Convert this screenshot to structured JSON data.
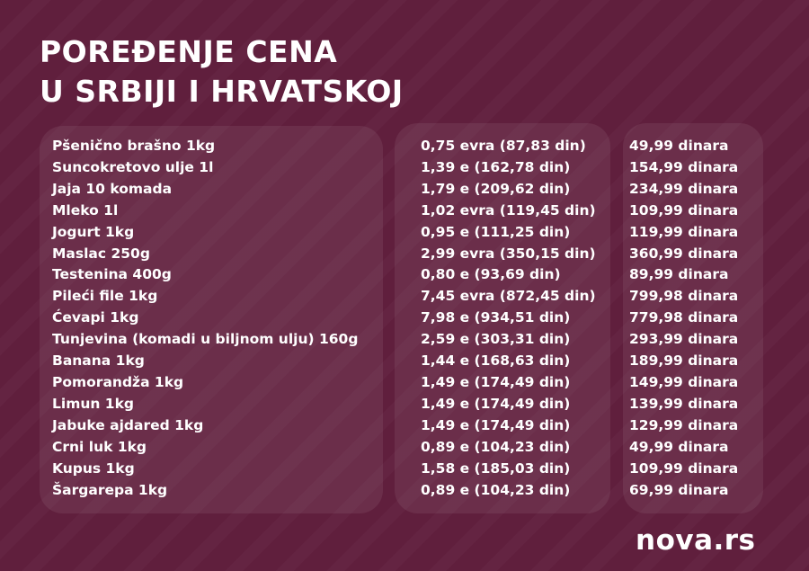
{
  "title": {
    "line1": "POREĐENJE CENA",
    "line2": "U SRBIJI I HRVATSKOJ"
  },
  "colors": {
    "background": "#601f3d",
    "panel": "rgba(255,255,255,0.07)",
    "text": "#ffffff"
  },
  "table": {
    "rows": [
      {
        "product": "Pšenično brašno 1kg",
        "croatia": "0,75 evra (87,83 din)",
        "serbia": "49,99 dinara"
      },
      {
        "product": "Suncokretovo ulje 1l",
        "croatia": "1,39 e (162,78 din)",
        "serbia": "154,99 dinara"
      },
      {
        "product": "Jaja 10 komada",
        "croatia": "1,79 e (209,62 din)",
        "serbia": "234,99 dinara"
      },
      {
        "product": "Mleko 1l",
        "croatia": "1,02 evra (119,45 din)",
        "serbia": "109,99 dinara"
      },
      {
        "product": "Jogurt 1kg",
        "croatia": "0,95 e (111,25 din)",
        "serbia": "119,99 dinara"
      },
      {
        "product": "Maslac 250g",
        "croatia": "2,99 evra (350,15 din)",
        "serbia": "360,99 dinara"
      },
      {
        "product": "Testenina 400g",
        "croatia": "0,80 e (93,69 din)",
        "serbia": "89,99 dinara"
      },
      {
        "product": "Pileći file 1kg",
        "croatia": "7,45 evra (872,45 din)",
        "serbia": "799,98 dinara"
      },
      {
        "product": "Ćevapi 1kg",
        "croatia": "7,98 e (934,51 din)",
        "serbia": "779,98 dinara"
      },
      {
        "product": "Tunjevina (komadi u biljnom ulju) 160g",
        "croatia": "2,59 e (303,31 din)",
        "serbia": "293,99 dinara"
      },
      {
        "product": "Banana 1kg",
        "croatia": "1,44 e (168,63 din)",
        "serbia": "189,99 dinara"
      },
      {
        "product": "Pomorandža 1kg",
        "croatia": "1,49 e (174,49 din)",
        "serbia": "149,99 dinara"
      },
      {
        "product": "Limun 1kg",
        "croatia": "1,49 e (174,49 din)",
        "serbia": "139,99 dinara"
      },
      {
        "product": "Jabuke ajdared 1kg",
        "croatia": "1,49 e (174,49 din)",
        "serbia": "129,99 dinara"
      },
      {
        "product": "Crni luk 1kg",
        "croatia": "0,89 e (104,23 din)",
        "serbia": "49,99 dinara"
      },
      {
        "product": "Kupus 1kg",
        "croatia": "1,58 e (185,03 din)",
        "serbia": "109,99 dinara"
      },
      {
        "product": "Šargarepa 1kg",
        "croatia": "0,89 e (104,23 din)",
        "serbia": "69,99 dinara"
      }
    ]
  },
  "logo": {
    "text": "nova.rs"
  }
}
